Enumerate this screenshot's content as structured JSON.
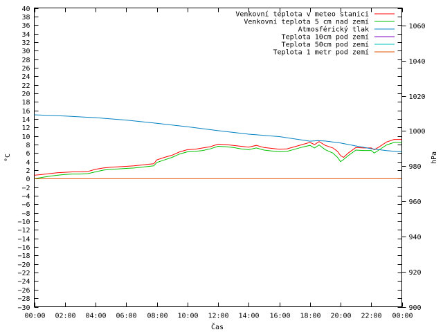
{
  "chart_data": {
    "type": "line",
    "xlabel": "Čas",
    "ylabel": "°C",
    "y2label": "hPa",
    "x_ticks": [
      "00:00",
      "02:00",
      "04:00",
      "06:00",
      "08:00",
      "10:00",
      "12:00",
      "14:00",
      "16:00",
      "18:00",
      "20:00",
      "22:00",
      "00:00"
    ],
    "xlim_hours": [
      0,
      24
    ],
    "ylim": [
      -30,
      40
    ],
    "y_ticks_step": 2,
    "y2lim": [
      900,
      1070
    ],
    "y2_ticks": [
      900,
      920,
      940,
      960,
      980,
      1000,
      1020,
      1040,
      1060
    ],
    "grid": false,
    "legend_position": "top-right",
    "series": [
      {
        "name": "Venkovní teplota v meteo stanici",
        "color": "#ff0000",
        "axis": "left",
        "x_hours": [
          0,
          0.5,
          1,
          1.5,
          2,
          2.5,
          3,
          3.5,
          4,
          4.5,
          5,
          5.5,
          6,
          6.5,
          7,
          7.5,
          7.8,
          8,
          8.5,
          9,
          9.5,
          10,
          10.5,
          11,
          11.5,
          12,
          12.5,
          13,
          13.5,
          14,
          14.5,
          15,
          15.5,
          16,
          16.5,
          17,
          17.5,
          18,
          18.3,
          18.6,
          19,
          19.5,
          19.8,
          20,
          20.2,
          20.5,
          21,
          21.5,
          22,
          22.2,
          22.5,
          23,
          23.5,
          24
        ],
        "values": [
          0.8,
          1.0,
          1.2,
          1.4,
          1.5,
          1.6,
          1.6,
          1.7,
          2.2,
          2.5,
          2.7,
          2.8,
          2.9,
          3.0,
          3.2,
          3.4,
          3.5,
          4.4,
          5.0,
          5.5,
          6.3,
          6.8,
          6.9,
          7.2,
          7.5,
          8.1,
          8.0,
          7.8,
          7.6,
          7.4,
          7.8,
          7.3,
          7.1,
          6.9,
          7.0,
          7.5,
          8.0,
          8.5,
          8.0,
          8.7,
          7.8,
          7.2,
          6.4,
          5.4,
          5.0,
          6.0,
          7.3,
          7.2,
          7.2,
          6.8,
          7.4,
          8.6,
          9.2,
          9.2
        ]
      },
      {
        "name": "Venkovní teplota 5 cm nad zemí",
        "color": "#00c000",
        "axis": "left",
        "x_hours": [
          0,
          0.5,
          1,
          1.5,
          2,
          2.5,
          3,
          3.5,
          4,
          4.5,
          5,
          5.5,
          6,
          6.5,
          7,
          7.5,
          7.8,
          8,
          8.5,
          9,
          9.5,
          10,
          10.5,
          11,
          11.5,
          12,
          12.5,
          13,
          13.5,
          14,
          14.5,
          15,
          15.5,
          16,
          16.5,
          17,
          17.5,
          18,
          18.3,
          18.6,
          19,
          19.5,
          19.8,
          20,
          20.2,
          20.5,
          21,
          21.5,
          22,
          22.2,
          22.5,
          23,
          23.5,
          24
        ],
        "values": [
          0.0,
          0.3,
          0.6,
          0.8,
          1.0,
          1.1,
          1.1,
          1.2,
          1.6,
          2.0,
          2.2,
          2.3,
          2.4,
          2.5,
          2.7,
          2.9,
          3.0,
          3.8,
          4.4,
          5.0,
          5.8,
          6.3,
          6.4,
          6.6,
          7.0,
          7.6,
          7.5,
          7.3,
          7.0,
          6.8,
          7.2,
          6.7,
          6.5,
          6.3,
          6.4,
          6.9,
          7.4,
          7.8,
          7.2,
          7.9,
          6.8,
          6.0,
          5.0,
          4.0,
          4.5,
          5.4,
          6.7,
          6.6,
          6.6,
          6.0,
          6.7,
          7.9,
          8.5,
          8.5
        ]
      },
      {
        "name": "Atmosférický tlak",
        "color": "#0080c0",
        "axis": "right",
        "x_hours": [
          0,
          2,
          4,
          6,
          8,
          10,
          12,
          14,
          16,
          18,
          18.5,
          19,
          20,
          21,
          22,
          23,
          24
        ],
        "values": [
          1009.2,
          1008.5,
          1007.6,
          1006.2,
          1004.4,
          1002.4,
          1000.2,
          998.2,
          996.8,
          994.2,
          994.5,
          994.3,
          993.2,
          991.5,
          989.9,
          988.8,
          988.1
        ]
      },
      {
        "name": "Teplota 10cm pod zemí",
        "color": "#8000c0",
        "axis": "left",
        "x_hours": [],
        "values": []
      },
      {
        "name": "Teplota 50cm pod zemí",
        "color": "#00c0c0",
        "axis": "left",
        "x_hours": [],
        "values": []
      },
      {
        "name": "Teplota 1 metr pod zemí",
        "color": "#e05000",
        "axis": "left",
        "x_hours": [
          0,
          24
        ],
        "values": [
          0,
          0
        ]
      }
    ]
  }
}
